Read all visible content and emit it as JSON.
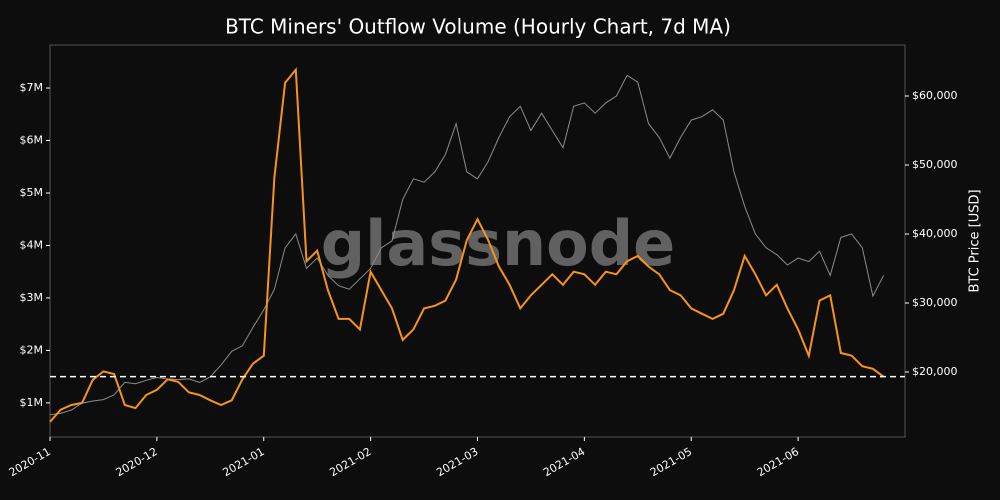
{
  "chart_data": {
    "type": "line",
    "title": "BTC Miners' Outflow Volume (Hourly Chart, 7d MA)",
    "watermark": "glassnode",
    "y2label": "BTC Price [USD]",
    "categories": [
      "2020-11",
      null,
      null,
      null,
      null,
      null,
      null,
      null,
      null,
      null,
      "2020-12",
      null,
      null,
      null,
      null,
      null,
      null,
      null,
      null,
      null,
      "2021-01",
      null,
      null,
      null,
      null,
      null,
      null,
      null,
      null,
      null,
      "2021-02",
      null,
      null,
      null,
      null,
      null,
      null,
      null,
      null,
      null,
      "2021-03",
      null,
      null,
      null,
      null,
      null,
      null,
      null,
      null,
      null,
      "2021-04",
      null,
      null,
      null,
      null,
      null,
      null,
      null,
      null,
      null,
      "2021-05",
      null,
      null,
      null,
      null,
      null,
      null,
      null,
      null,
      null,
      "2021-06",
      null,
      null,
      null,
      null,
      null,
      null,
      null,
      null
    ],
    "series": [
      {
        "color": "#f7931a",
        "values": [
          640000,
          870000,
          960000,
          1000000,
          1440000,
          1600000,
          1550000,
          960000,
          900000,
          1150000,
          1250000,
          1450000,
          1400000,
          1200000,
          1150000,
          1050000,
          960000,
          1050000,
          1450000,
          1750000,
          1900000,
          5300000,
          7100000,
          7350000,
          3700000,
          3900000,
          3150000,
          2600000,
          2600000,
          2400000,
          3500000,
          3150000,
          2800000,
          2200000,
          2400000,
          2800000,
          2850000,
          2950000,
          3350000,
          4100000,
          4500000,
          4100000,
          3600000,
          3250000,
          2800000,
          3050000,
          3250000,
          3450000,
          3250000,
          3500000,
          3450000,
          3250000,
          3500000,
          3450000,
          3700000,
          3800000,
          3600000,
          3450000,
          3150000,
          3050000,
          2800000,
          2700000,
          2600000,
          2700000,
          3150000,
          3800000,
          3450000,
          3050000,
          3250000,
          2800000,
          2400000,
          1900000,
          2950000,
          3050000,
          1950000,
          1900000,
          1700000,
          1650000,
          1500000
        ]
      },
      {
        "color": "#8c8c8c",
        "axis": "y2",
        "values": [
          13800,
          14000,
          14500,
          15500,
          15800,
          16000,
          16700,
          18500,
          18300,
          18800,
          19200,
          19000,
          18900,
          19000,
          18500,
          19300,
          21000,
          23000,
          23800,
          26500,
          29000,
          32000,
          38000,
          40000,
          35000,
          36500,
          34000,
          32500,
          32000,
          33500,
          35000,
          38000,
          39000,
          45000,
          48000,
          47500,
          49000,
          51500,
          56000,
          49000,
          48000,
          50500,
          54000,
          57000,
          58500,
          55000,
          57500,
          55000,
          52500,
          58500,
          59000,
          57500,
          59000,
          60000,
          63000,
          62000,
          56000,
          54000,
          51000,
          54000,
          56500,
          57000,
          58000,
          56500,
          49000,
          44000,
          40000,
          38000,
          37000,
          35500,
          36500,
          36000,
          37500,
          34000,
          39500,
          40000,
          38000,
          31000,
          34000
        ]
      }
    ],
    "hline": {
      "value": 1500000,
      "color": "#ffffff",
      "style": "dashed"
    },
    "ylim": [
      350000,
      7820000
    ],
    "yticks": [
      {
        "value": 1000000,
        "label": "$1M"
      },
      {
        "value": 2000000,
        "label": "$2M"
      },
      {
        "value": 3000000,
        "label": "$3M"
      },
      {
        "value": 4000000,
        "label": "$4M"
      },
      {
        "value": 5000000,
        "label": "$5M"
      },
      {
        "value": 6000000,
        "label": "$6M"
      },
      {
        "value": 7000000,
        "label": "$7M"
      }
    ],
    "y2lim": [
      10580,
      67390
    ],
    "y2ticks": [
      {
        "value": 20000,
        "label": "$20,000"
      },
      {
        "value": 30000,
        "label": "$30,000"
      },
      {
        "value": 40000,
        "label": "$40,000"
      },
      {
        "value": 50000,
        "label": "$50,000"
      },
      {
        "value": 60000,
        "label": "$60,000"
      }
    ],
    "background": "#0d0d0d"
  }
}
